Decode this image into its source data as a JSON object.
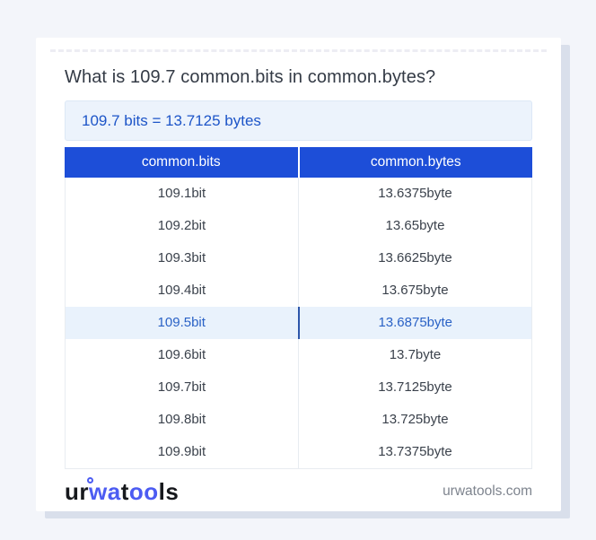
{
  "page": {
    "background_color": "#f3f5fa",
    "card_shadow_color": "#d9dfeb"
  },
  "header": {
    "title": "What is 109.7 common.bits in common.bytes?"
  },
  "result": {
    "text": "109.7 bits = 13.7125 bytes",
    "text_color": "#1d55c8",
    "background_color": "#ecf3fc"
  },
  "table": {
    "header_background_color": "#1d4ed8",
    "highlight_background_color": "#e9f2fc",
    "highlight_text_color": "#2a62c6",
    "headers": [
      "common.bits",
      "common.bytes"
    ],
    "rows": [
      {
        "bits": "109.1bit",
        "bytes": "13.6375byte",
        "highlight": false
      },
      {
        "bits": "109.2bit",
        "bytes": "13.65byte",
        "highlight": false
      },
      {
        "bits": "109.3bit",
        "bytes": "13.6625byte",
        "highlight": false
      },
      {
        "bits": "109.4bit",
        "bytes": "13.675byte",
        "highlight": false
      },
      {
        "bits": "109.5bit",
        "bytes": "13.6875byte",
        "highlight": true
      },
      {
        "bits": "109.6bit",
        "bytes": "13.7byte",
        "highlight": false
      },
      {
        "bits": "109.7bit",
        "bytes": "13.7125byte",
        "highlight": false
      },
      {
        "bits": "109.8bit",
        "bytes": "13.725byte",
        "highlight": false
      },
      {
        "bits": "109.9bit",
        "bytes": "13.7375byte",
        "highlight": false
      }
    ]
  },
  "footer": {
    "logo": {
      "part1": "ur",
      "part2": "wa",
      "part3": "t",
      "part4": "oo",
      "part5": "ls",
      "accent_color": "#4c5cf2"
    },
    "site": "urwatools.com"
  }
}
